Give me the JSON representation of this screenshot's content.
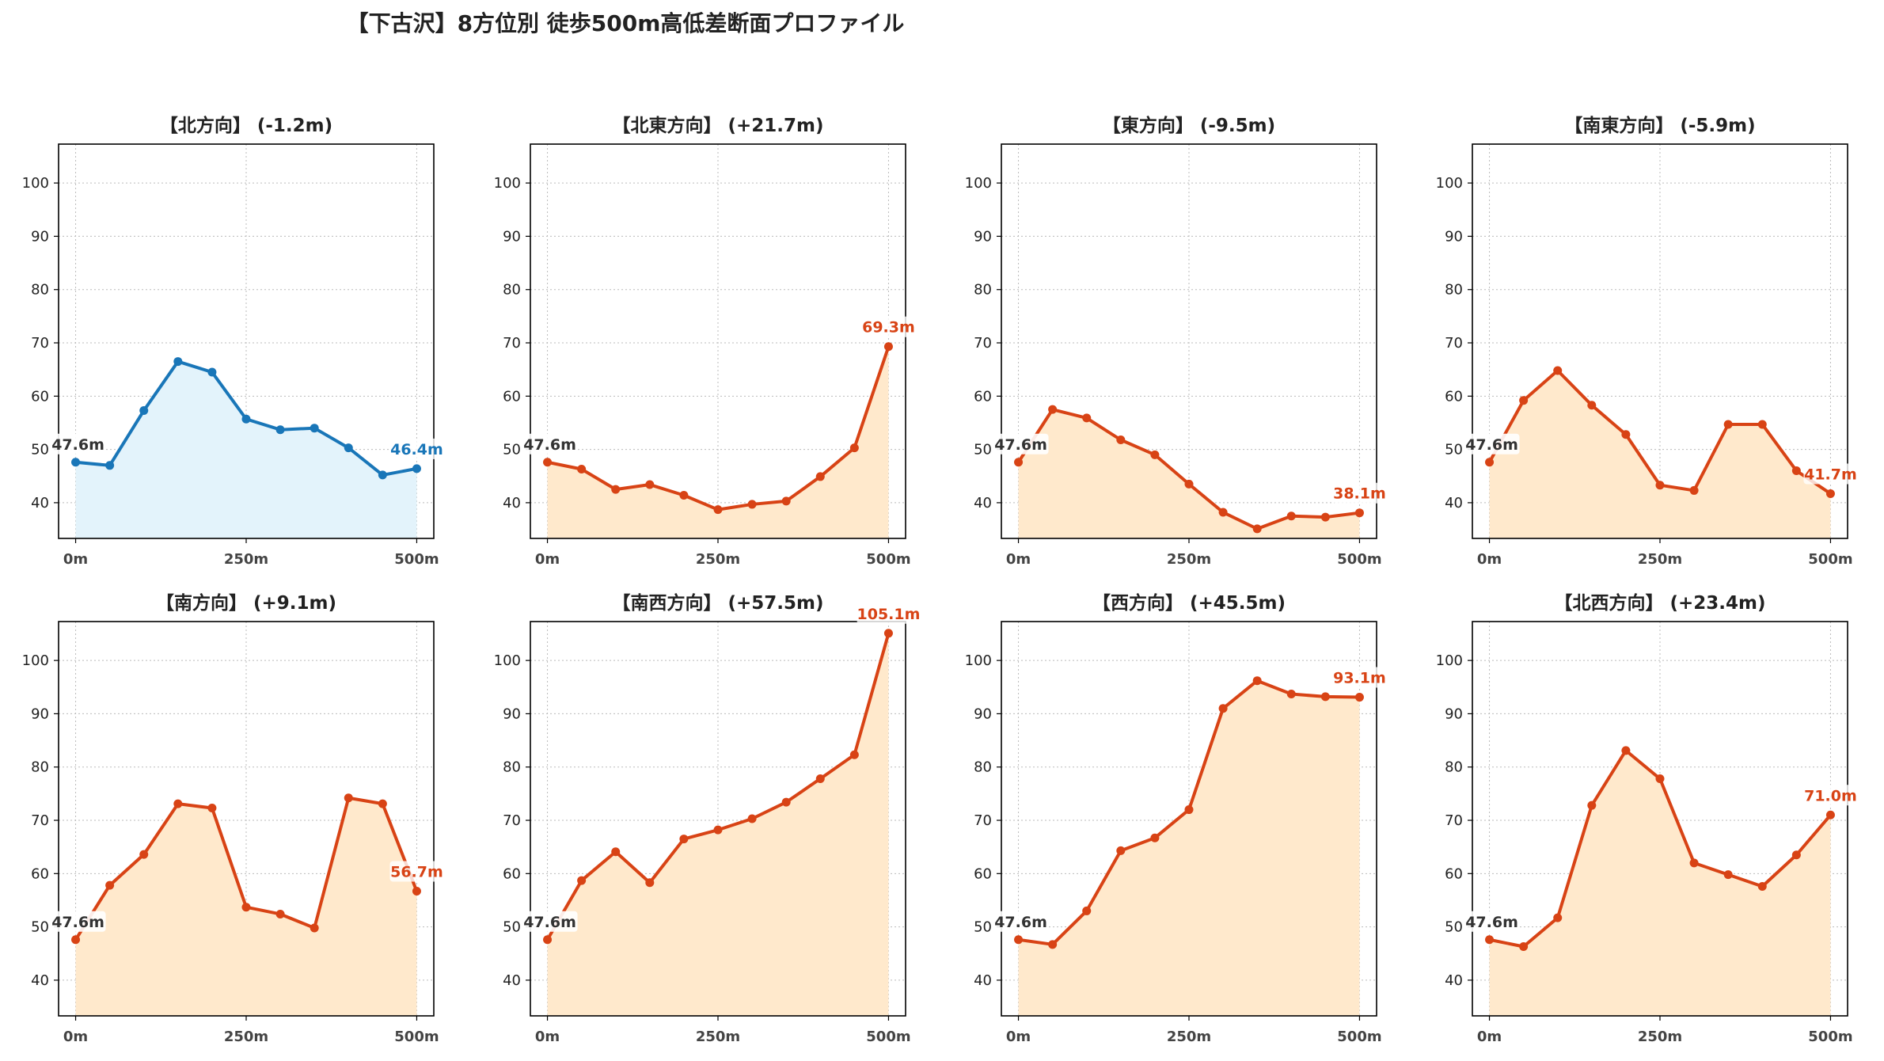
{
  "title": "【下古沢】8方位別 徒歩500m高低差断面プロファイル",
  "chart_data": [
    {
      "type": "area",
      "title": "【北方向】 (-1.2m)",
      "x": [
        0,
        50,
        100,
        150,
        200,
        250,
        300,
        350,
        400,
        450,
        500
      ],
      "values": [
        47.6,
        47.0,
        57.3,
        66.5,
        64.5,
        55.7,
        53.7,
        54.0,
        50.3,
        45.2,
        46.4
      ],
      "start_label": "47.6m",
      "end_label": "46.4m",
      "line_color": "#1976b8",
      "fill_color": "#e3f3fb",
      "xticks": [
        "0m",
        "250m",
        "500m"
      ],
      "yticks": [
        40,
        50,
        60,
        70,
        80,
        90,
        100
      ],
      "ylim": [
        33.3,
        107.3
      ]
    },
    {
      "type": "area",
      "title": "【北東方向】 (+21.7m)",
      "x": [
        0,
        50,
        100,
        150,
        200,
        250,
        300,
        350,
        400,
        450,
        500
      ],
      "values": [
        47.6,
        46.3,
        42.5,
        43.4,
        41.4,
        38.7,
        39.7,
        40.3,
        44.9,
        50.3,
        69.3
      ],
      "start_label": "47.6m",
      "end_label": "69.3m",
      "line_color": "#d84315",
      "fill_color": "#ffe9cc",
      "xticks": [
        "0m",
        "250m",
        "500m"
      ],
      "yticks": [
        40,
        50,
        60,
        70,
        80,
        90,
        100
      ],
      "ylim": [
        33.3,
        107.3
      ]
    },
    {
      "type": "area",
      "title": "【東方向】 (-9.5m)",
      "x": [
        0,
        50,
        100,
        150,
        200,
        250,
        300,
        350,
        400,
        450,
        500
      ],
      "values": [
        47.6,
        57.5,
        55.9,
        51.8,
        49.0,
        43.5,
        38.2,
        35.1,
        37.5,
        37.3,
        38.1
      ],
      "start_label": "47.6m",
      "end_label": "38.1m",
      "line_color": "#d84315",
      "fill_color": "#ffe9cc",
      "xticks": [
        "0m",
        "250m",
        "500m"
      ],
      "yticks": [
        40,
        50,
        60,
        70,
        80,
        90,
        100
      ],
      "ylim": [
        33.3,
        107.3
      ]
    },
    {
      "type": "area",
      "title": "【南東方向】 (-5.9m)",
      "x": [
        0,
        50,
        100,
        150,
        200,
        250,
        300,
        350,
        400,
        450,
        500
      ],
      "values": [
        47.6,
        59.2,
        64.8,
        58.3,
        52.8,
        43.3,
        42.3,
        54.7,
        54.7,
        46.0,
        41.7
      ],
      "start_label": "47.6m",
      "end_label": "41.7m",
      "line_color": "#d84315",
      "fill_color": "#ffe9cc",
      "xticks": [
        "0m",
        "250m",
        "500m"
      ],
      "yticks": [
        40,
        50,
        60,
        70,
        80,
        90,
        100
      ],
      "ylim": [
        33.3,
        107.3
      ]
    },
    {
      "type": "area",
      "title": "【南方向】 (+9.1m)",
      "x": [
        0,
        50,
        100,
        150,
        200,
        250,
        300,
        350,
        400,
        450,
        500
      ],
      "values": [
        47.6,
        57.8,
        63.6,
        73.1,
        72.3,
        53.7,
        52.4,
        49.8,
        74.2,
        73.1,
        56.7
      ],
      "start_label": "47.6m",
      "end_label": "56.7m",
      "line_color": "#d84315",
      "fill_color": "#ffe9cc",
      "xticks": [
        "0m",
        "250m",
        "500m"
      ],
      "yticks": [
        40,
        50,
        60,
        70,
        80,
        90,
        100
      ],
      "ylim": [
        33.3,
        107.3
      ]
    },
    {
      "type": "area",
      "title": "【南西方向】 (+57.5m)",
      "x": [
        0,
        50,
        100,
        150,
        200,
        250,
        300,
        350,
        400,
        450,
        500
      ],
      "values": [
        47.6,
        58.7,
        64.1,
        58.3,
        66.5,
        68.2,
        70.3,
        73.4,
        77.8,
        82.3,
        105.1
      ],
      "start_label": "47.6m",
      "end_label": "105.1m",
      "line_color": "#d84315",
      "fill_color": "#ffe9cc",
      "xticks": [
        "0m",
        "250m",
        "500m"
      ],
      "yticks": [
        40,
        50,
        60,
        70,
        80,
        90,
        100
      ],
      "ylim": [
        33.3,
        107.3
      ]
    },
    {
      "type": "area",
      "title": "【西方向】 (+45.5m)",
      "x": [
        0,
        50,
        100,
        150,
        200,
        250,
        300,
        350,
        400,
        450,
        500
      ],
      "values": [
        47.6,
        46.7,
        53.0,
        64.3,
        66.7,
        72.0,
        91.0,
        96.2,
        93.7,
        93.2,
        93.1
      ],
      "start_label": "47.6m",
      "end_label": "93.1m",
      "line_color": "#d84315",
      "fill_color": "#ffe9cc",
      "xticks": [
        "0m",
        "250m",
        "500m"
      ],
      "yticks": [
        40,
        50,
        60,
        70,
        80,
        90,
        100
      ],
      "ylim": [
        33.3,
        107.3
      ]
    },
    {
      "type": "area",
      "title": "【北西方向】 (+23.4m)",
      "x": [
        0,
        50,
        100,
        150,
        200,
        250,
        300,
        350,
        400,
        450,
        500
      ],
      "values": [
        47.6,
        46.3,
        51.7,
        72.8,
        83.1,
        77.8,
        62.0,
        59.8,
        57.6,
        63.5,
        71.0
      ],
      "start_label": "47.6m",
      "end_label": "71.0m",
      "line_color": "#d84315",
      "fill_color": "#ffe9cc",
      "xticks": [
        "0m",
        "250m",
        "500m"
      ],
      "yticks": [
        40,
        50,
        60,
        70,
        80,
        90,
        100
      ],
      "ylim": [
        33.3,
        107.3
      ]
    }
  ]
}
